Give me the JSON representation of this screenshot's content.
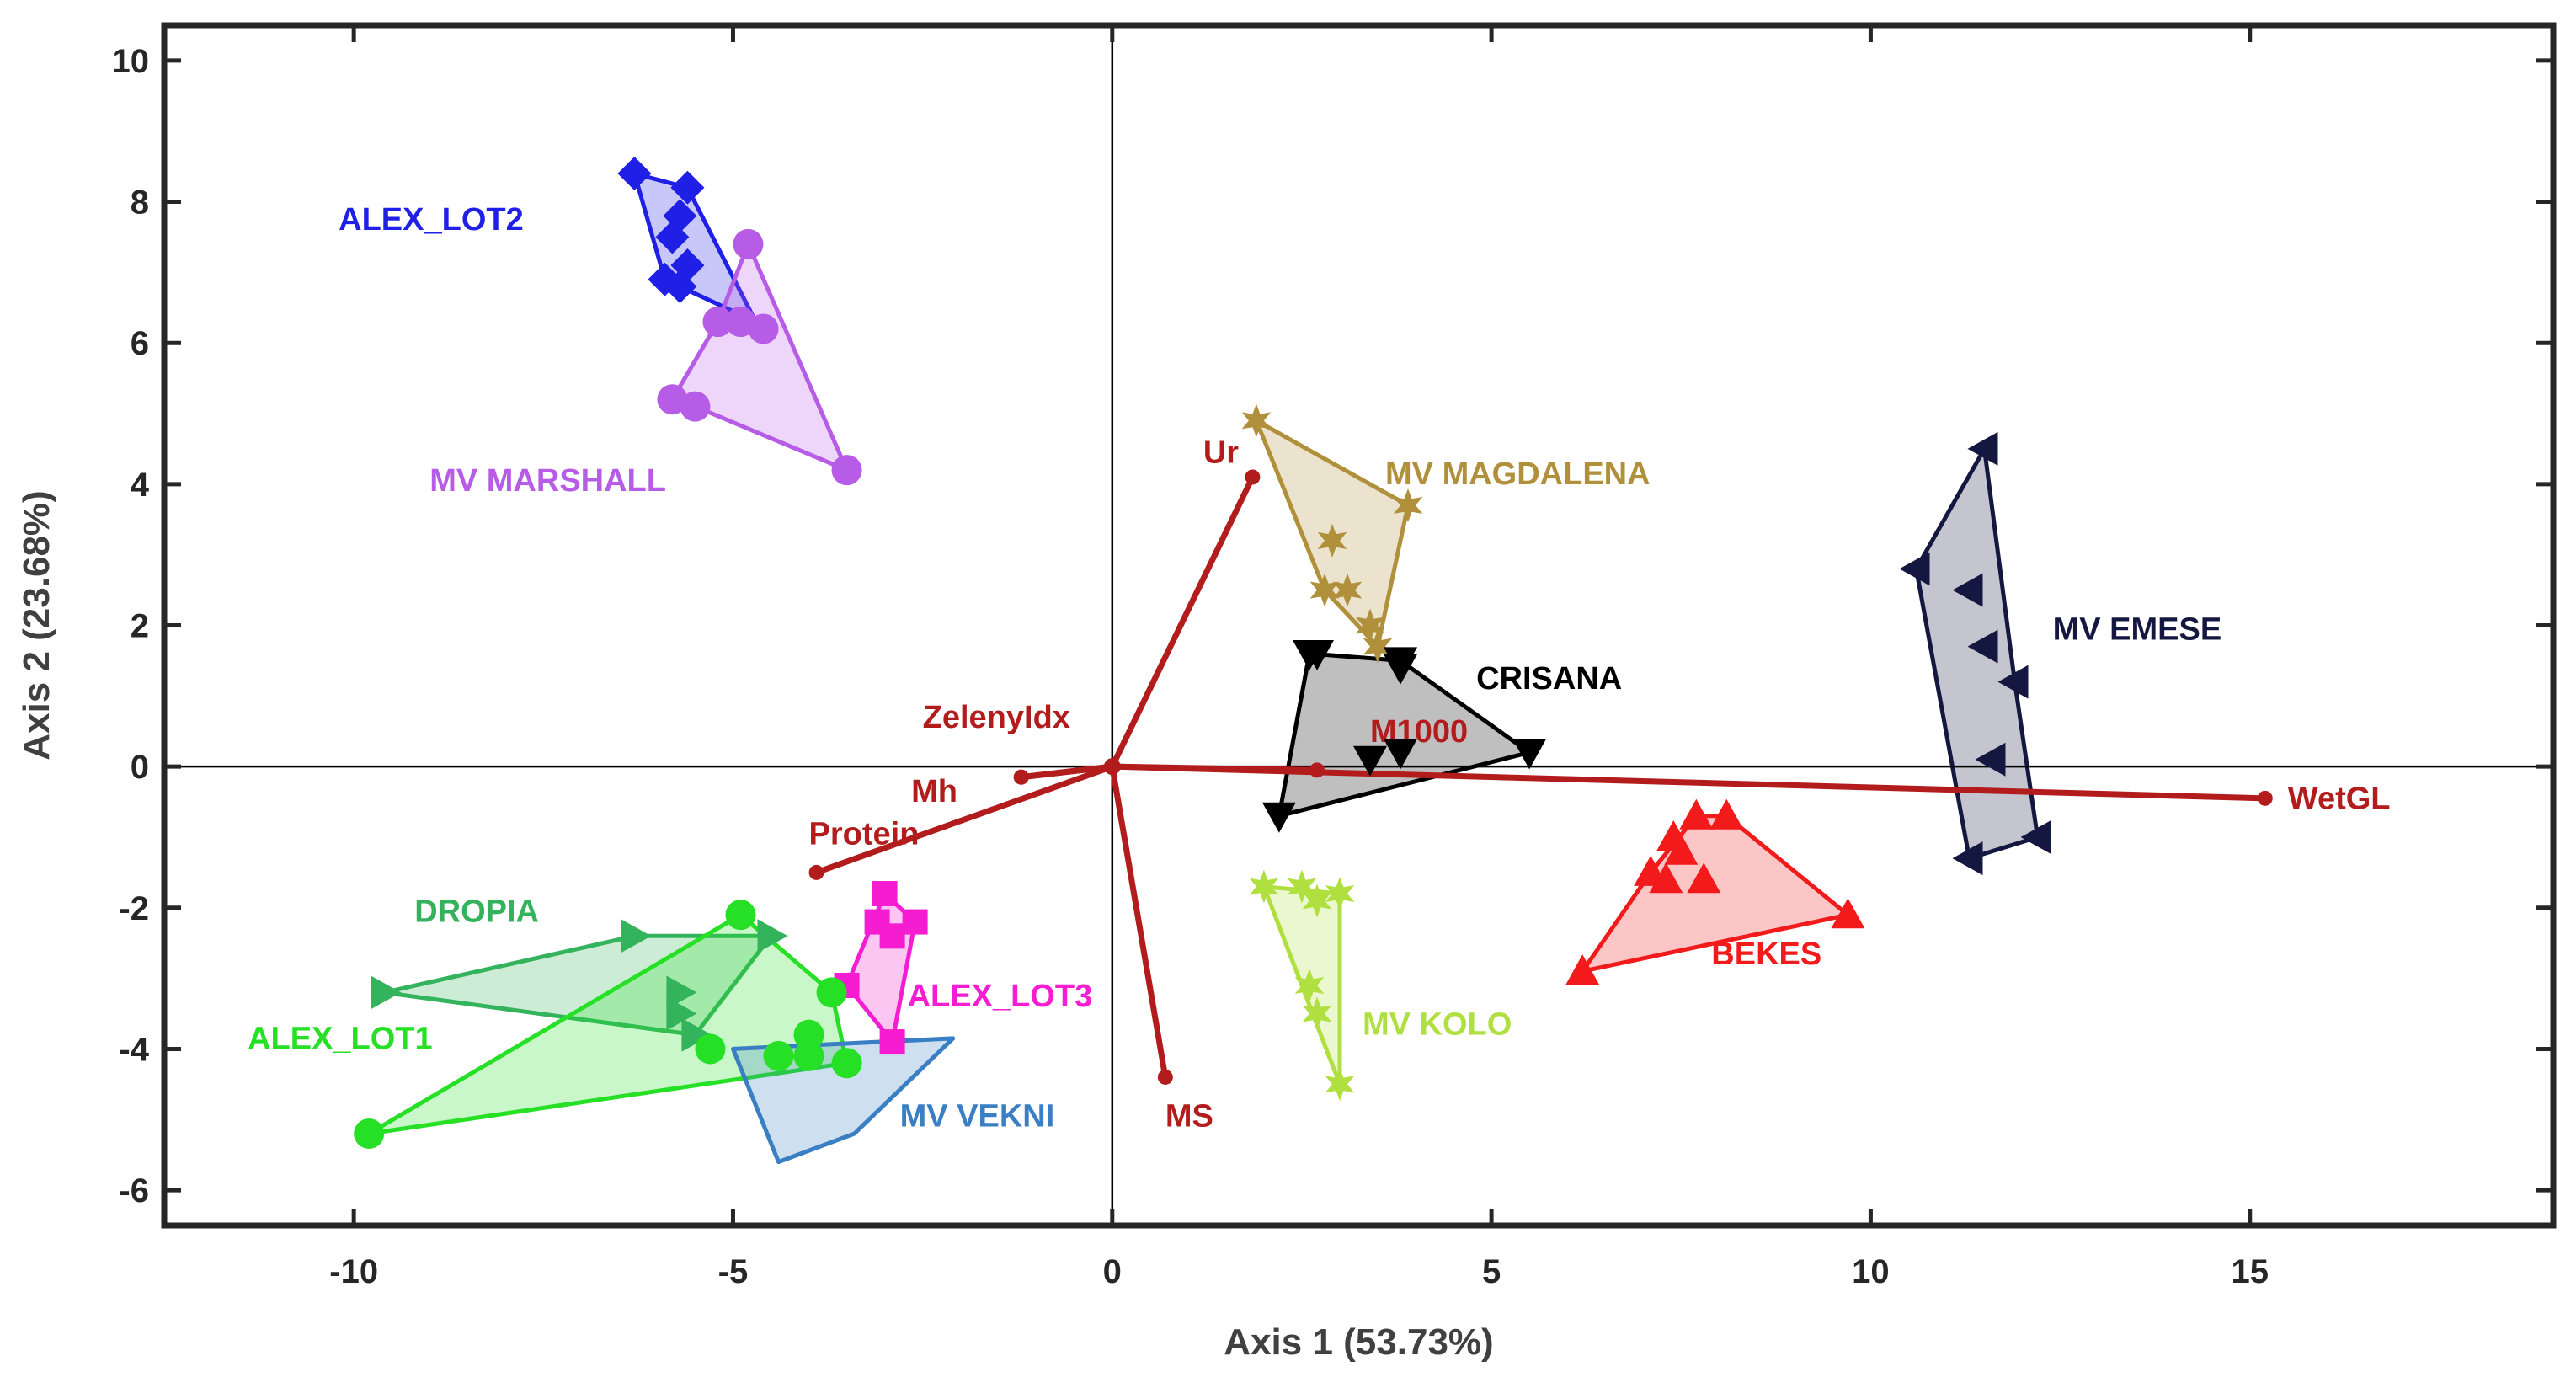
{
  "chart_data": {
    "type": "scatter",
    "subtype": "pca-biplot",
    "title": "",
    "xlabel": "Axis 1 (53.73%)",
    "ylabel": "Axis 2 (23.68%)",
    "xlim": [
      -12.5,
      19
    ],
    "ylim": [
      -6.5,
      10.5
    ],
    "xticks": [
      -10,
      -5,
      0,
      5,
      10,
      15
    ],
    "yticks": [
      -6,
      -4,
      -2,
      0,
      2,
      4,
      6,
      8,
      10
    ],
    "grid": false,
    "groups": [
      {
        "name": "ALEX_LOT2",
        "color": "#1f1fe6",
        "marker": "diamond",
        "label_at": [
          -10.2,
          7.6
        ],
        "points": [
          [
            -6.3,
            8.4
          ],
          [
            -5.6,
            8.2
          ],
          [
            -5.7,
            7.8
          ],
          [
            -5.8,
            7.5
          ],
          [
            -5.6,
            7.1
          ],
          [
            -5.9,
            6.9
          ],
          [
            -5.7,
            6.8
          ]
        ],
        "hull": [
          [
            -6.3,
            8.4
          ],
          [
            -5.6,
            8.2
          ],
          [
            -4.7,
            6.3
          ],
          [
            -5.9,
            6.9
          ]
        ]
      },
      {
        "name": "MV MARSHALL",
        "color": "#b65ce6",
        "marker": "circle",
        "label_at": [
          -9.0,
          3.9
        ],
        "points": [
          [
            -4.8,
            7.4
          ],
          [
            -5.2,
            6.3
          ],
          [
            -4.9,
            6.3
          ],
          [
            -4.6,
            6.2
          ],
          [
            -5.8,
            5.2
          ],
          [
            -5.5,
            5.1
          ],
          [
            -3.5,
            4.2
          ]
        ],
        "hull": [
          [
            -4.8,
            7.4
          ],
          [
            -3.5,
            4.2
          ],
          [
            -5.5,
            5.1
          ],
          [
            -5.8,
            5.2
          ],
          [
            -5.2,
            6.3
          ]
        ]
      },
      {
        "name": "MV MAGDALENA",
        "color": "#b0903a",
        "marker": "star",
        "label_at": [
          3.6,
          4.0
        ],
        "points": [
          [
            1.9,
            4.9
          ],
          [
            3.9,
            3.7
          ],
          [
            2.9,
            3.2
          ],
          [
            2.8,
            2.5
          ],
          [
            3.1,
            2.5
          ],
          [
            3.4,
            2.0
          ],
          [
            3.5,
            1.7
          ]
        ],
        "hull": [
          [
            1.9,
            4.9
          ],
          [
            3.9,
            3.7
          ],
          [
            3.5,
            1.7
          ],
          [
            2.8,
            2.5
          ]
        ]
      },
      {
        "name": "CRISANA",
        "color": "#000000",
        "marker": "triangle-down",
        "label_at": [
          4.8,
          1.1
        ],
        "points": [
          [
            2.6,
            1.6
          ],
          [
            2.7,
            1.6
          ],
          [
            3.8,
            1.5
          ],
          [
            3.8,
            1.4
          ],
          [
            3.4,
            0.1
          ],
          [
            3.8,
            0.2
          ],
          [
            5.5,
            0.2
          ],
          [
            2.2,
            -0.7
          ]
        ],
        "hull": [
          [
            2.6,
            1.6
          ],
          [
            3.8,
            1.5
          ],
          [
            5.5,
            0.2
          ],
          [
            2.2,
            -0.7
          ]
        ]
      },
      {
        "name": "MV EMESE",
        "color": "#141840",
        "marker": "triangle-left",
        "label_at": [
          12.4,
          1.8
        ],
        "points": [
          [
            11.5,
            4.5
          ],
          [
            10.6,
            2.8
          ],
          [
            11.3,
            2.5
          ],
          [
            11.5,
            1.7
          ],
          [
            11.9,
            1.2
          ],
          [
            11.6,
            0.1
          ],
          [
            11.3,
            -1.3
          ],
          [
            12.2,
            -1.0
          ]
        ],
        "hull": [
          [
            11.5,
            4.5
          ],
          [
            11.9,
            1.2
          ],
          [
            12.2,
            -1.0
          ],
          [
            11.3,
            -1.3
          ],
          [
            10.6,
            2.8
          ]
        ]
      },
      {
        "name": "BEKES",
        "color": "#f21a1a",
        "marker": "triangle-up",
        "label_at": [
          7.9,
          -2.8
        ],
        "points": [
          [
            7.7,
            -0.7
          ],
          [
            8.1,
            -0.7
          ],
          [
            7.4,
            -1.0
          ],
          [
            7.5,
            -1.2
          ],
          [
            7.1,
            -1.5
          ],
          [
            7.3,
            -1.6
          ],
          [
            7.8,
            -1.6
          ],
          [
            9.7,
            -2.1
          ],
          [
            6.2,
            -2.9
          ]
        ],
        "hull": [
          [
            7.7,
            -0.7
          ],
          [
            8.1,
            -0.7
          ],
          [
            9.7,
            -2.1
          ],
          [
            6.2,
            -2.9
          ],
          [
            7.1,
            -1.5
          ]
        ]
      },
      {
        "name": "MV KOLO",
        "color": "#b0e040",
        "marker": "star",
        "label_at": [
          3.3,
          -3.8
        ],
        "points": [
          [
            2.0,
            -1.7
          ],
          [
            2.5,
            -1.7
          ],
          [
            2.7,
            -1.9
          ],
          [
            3.0,
            -1.8
          ],
          [
            2.6,
            -3.1
          ],
          [
            2.7,
            -3.5
          ],
          [
            3.0,
            -4.5
          ]
        ],
        "hull": [
          [
            2.0,
            -1.7
          ],
          [
            3.0,
            -1.8
          ],
          [
            3.0,
            -4.5
          ]
        ]
      },
      {
        "name": "ALEX_LOT3",
        "color": "#f51cd1",
        "marker": "square",
        "label_at": [
          -2.7,
          -3.4
        ],
        "points": [
          [
            -3.0,
            -1.8
          ],
          [
            -3.1,
            -2.2
          ],
          [
            -2.6,
            -2.2
          ],
          [
            -2.9,
            -2.4
          ],
          [
            -3.5,
            -3.1
          ],
          [
            -2.9,
            -3.9
          ]
        ],
        "hull": [
          [
            -3.0,
            -1.8
          ],
          [
            -2.6,
            -2.2
          ],
          [
            -2.9,
            -3.9
          ],
          [
            -3.5,
            -3.1
          ]
        ]
      },
      {
        "name": "DROPIA",
        "color": "#33b35c",
        "marker": "triangle-right",
        "label_at": [
          -9.2,
          -2.2
        ],
        "points": [
          [
            -6.3,
            -2.4
          ],
          [
            -4.5,
            -2.4
          ],
          [
            -9.6,
            -3.2
          ],
          [
            -5.7,
            -3.2
          ],
          [
            -5.7,
            -3.5
          ],
          [
            -5.5,
            -3.8
          ]
        ],
        "hull": [
          [
            -6.3,
            -2.4
          ],
          [
            -4.5,
            -2.4
          ],
          [
            -5.5,
            -3.8
          ],
          [
            -9.6,
            -3.2
          ]
        ]
      },
      {
        "name": "ALEX_LOT1",
        "color": "#26e026",
        "marker": "circle",
        "label_at": [
          -11.4,
          -4.0
        ],
        "points": [
          [
            -4.9,
            -2.1
          ],
          [
            -3.7,
            -3.2
          ],
          [
            -5.3,
            -4.0
          ],
          [
            -4.0,
            -3.8
          ],
          [
            -4.4,
            -4.1
          ],
          [
            -4.0,
            -4.1
          ],
          [
            -3.5,
            -4.2
          ],
          [
            -9.8,
            -5.2
          ]
        ],
        "hull": [
          [
            -4.9,
            -2.1
          ],
          [
            -3.7,
            -3.2
          ],
          [
            -3.5,
            -4.2
          ],
          [
            -9.8,
            -5.2
          ]
        ]
      },
      {
        "name": "MV VEKNI",
        "color": "#3a7fc4",
        "marker": "none",
        "label_at": [
          -2.8,
          -5.1
        ],
        "points": [],
        "hull": [
          [
            -5.0,
            -4.0
          ],
          [
            -2.1,
            -3.85
          ],
          [
            -3.4,
            -5.2
          ],
          [
            -4.4,
            -5.6
          ]
        ]
      }
    ],
    "loadings": [
      {
        "name": "Ur",
        "end": [
          1.85,
          4.1
        ],
        "label_at": [
          1.2,
          4.3
        ]
      },
      {
        "name": "ZelenyIdx",
        "end": [
          -1.2,
          -0.15
        ],
        "label_at": [
          -2.5,
          0.55
        ]
      },
      {
        "name": "Mh",
        "end": [
          -1.2,
          -0.15
        ],
        "label_at": [
          -2.65,
          -0.5
        ]
      },
      {
        "name": "M1000",
        "end": [
          2.7,
          -0.05
        ],
        "label_at": [
          3.4,
          0.35
        ]
      },
      {
        "name": "WetGL",
        "end": [
          15.2,
          -0.45
        ],
        "label_at": [
          15.5,
          -0.6
        ]
      },
      {
        "name": "Protein",
        "end": [
          -3.9,
          -1.5
        ],
        "label_at": [
          -4.0,
          -1.1
        ]
      },
      {
        "name": "MS",
        "end": [
          0.7,
          -4.4
        ],
        "label_at": [
          0.7,
          -5.1
        ]
      }
    ],
    "loading_color": "#b31c1c"
  }
}
